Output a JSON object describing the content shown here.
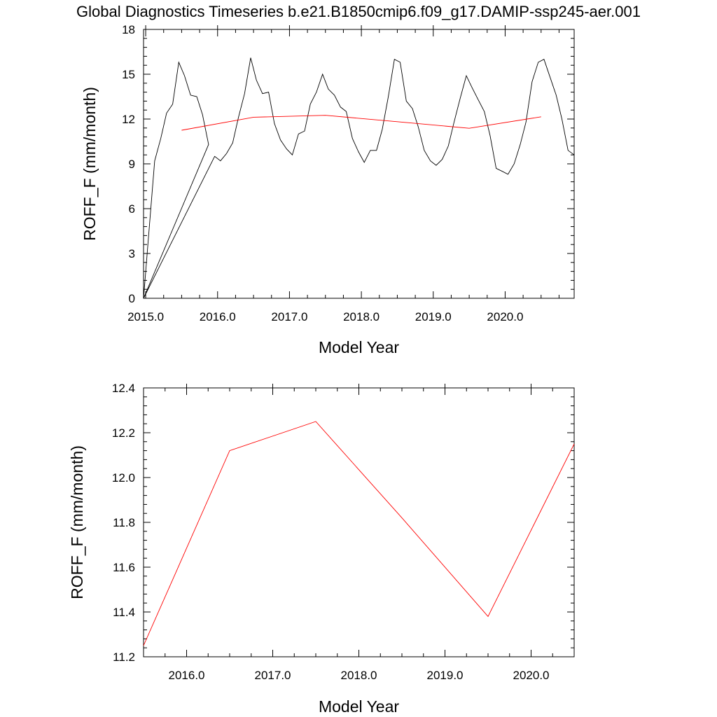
{
  "title": "Global Diagnostics Timeseries b.e21.B1850cmip6.f09_g17.DAMIP-ssp245-aer.001",
  "chart_data": [
    {
      "type": "line",
      "xlabel": "Model Year",
      "ylabel": "ROFF_F (mm/month)",
      "xlim": [
        2014.97,
        2020.96
      ],
      "ylim": [
        0,
        18
      ],
      "xticks": [
        "2015.0",
        "2016.0",
        "2017.0",
        "2018.0",
        "2019.0",
        "2020.0"
      ],
      "yticks": [
        "0",
        "3",
        "6",
        "9",
        "12",
        "15",
        "18"
      ],
      "series": [
        {
          "color": "#000000",
          "points": [
            [
              2014.97,
              0
            ],
            [
              2015.125,
              9.2
            ],
            [
              2015.21,
              10.7
            ],
            [
              2015.29,
              12.4
            ],
            [
              2015.375,
              13
            ],
            [
              2015.46,
              15.8
            ],
            [
              2015.54,
              14.9
            ],
            [
              2015.625,
              13.6
            ],
            [
              2015.71,
              13.5
            ],
            [
              2015.79,
              12.3
            ],
            [
              2015.875,
              10.3
            ],
            [
              2014.97,
              0
            ],
            [
              2015.96,
              9.5
            ],
            [
              2016.04,
              9.2
            ],
            [
              2016.125,
              9.7
            ],
            [
              2016.21,
              10.4
            ],
            [
              2016.29,
              12.1
            ],
            [
              2016.375,
              13.7
            ],
            [
              2016.46,
              16.1
            ],
            [
              2016.54,
              14.6
            ],
            [
              2016.625,
              13.7
            ],
            [
              2016.71,
              13.8
            ],
            [
              2016.79,
              11.7
            ],
            [
              2016.875,
              10.6
            ],
            [
              2016.96,
              10.0
            ],
            [
              2017.04,
              9.6
            ],
            [
              2017.125,
              11.0
            ],
            [
              2017.21,
              11.2
            ],
            [
              2017.29,
              13.0
            ],
            [
              2017.375,
              13.8
            ],
            [
              2017.46,
              15.0
            ],
            [
              2017.54,
              14.0
            ],
            [
              2017.625,
              13.6
            ],
            [
              2017.71,
              12.8
            ],
            [
              2017.79,
              12.5
            ],
            [
              2017.875,
              10.7
            ],
            [
              2017.96,
              9.8
            ],
            [
              2018.04,
              9.1
            ],
            [
              2018.125,
              9.9
            ],
            [
              2018.21,
              9.9
            ],
            [
              2018.29,
              11.3
            ],
            [
              2018.375,
              13.5
            ],
            [
              2018.46,
              16.0
            ],
            [
              2018.54,
              15.8
            ],
            [
              2018.625,
              13.2
            ],
            [
              2018.71,
              12.7
            ],
            [
              2018.79,
              11.5
            ],
            [
              2018.875,
              9.9
            ],
            [
              2018.96,
              9.2
            ],
            [
              2019.04,
              8.9
            ],
            [
              2019.125,
              9.3
            ],
            [
              2019.21,
              10.2
            ],
            [
              2019.29,
              11.8
            ],
            [
              2019.375,
              13.4
            ],
            [
              2019.46,
              14.9
            ],
            [
              2019.54,
              14.1
            ],
            [
              2019.625,
              13.3
            ],
            [
              2019.71,
              12.5
            ],
            [
              2019.79,
              10.9
            ],
            [
              2019.875,
              8.7
            ],
            [
              2019.96,
              8.5
            ],
            [
              2020.04,
              8.3
            ],
            [
              2020.125,
              9.0
            ],
            [
              2020.21,
              10.3
            ],
            [
              2020.29,
              11.8
            ],
            [
              2020.375,
              14.5
            ],
            [
              2020.46,
              15.8
            ],
            [
              2020.54,
              16.0
            ],
            [
              2020.625,
              14.8
            ],
            [
              2020.71,
              13.6
            ],
            [
              2020.79,
              12.0
            ],
            [
              2020.875,
              9.9
            ],
            [
              2020.96,
              9.6
            ]
          ]
        },
        {
          "color": "#ff0000",
          "points": [
            [
              2015.5,
              11.25
            ],
            [
              2016.5,
              12.12
            ],
            [
              2017.5,
              12.25
            ],
            [
              2018.5,
              11.82
            ],
            [
              2019.5,
              11.38
            ],
            [
              2020.5,
              12.15
            ]
          ]
        }
      ]
    },
    {
      "type": "line",
      "xlabel": "Model Year",
      "ylabel": "ROFF_F (mm/month)",
      "xlim": [
        2015.5,
        2020.5
      ],
      "ylim": [
        11.2,
        12.4
      ],
      "xticks": [
        "2016.0",
        "2017.0",
        "2018.0",
        "2019.0",
        "2020.0"
      ],
      "yticks": [
        "11.2",
        "11.4",
        "11.6",
        "11.8",
        "12.0",
        "12.2",
        "12.4"
      ],
      "series": [
        {
          "color": "#ff0000",
          "points": [
            [
              2015.5,
              11.25
            ],
            [
              2016.5,
              12.12
            ],
            [
              2017.5,
              12.25
            ],
            [
              2018.5,
              11.82
            ],
            [
              2019.5,
              11.38
            ],
            [
              2020.5,
              12.15
            ]
          ]
        }
      ]
    }
  ]
}
